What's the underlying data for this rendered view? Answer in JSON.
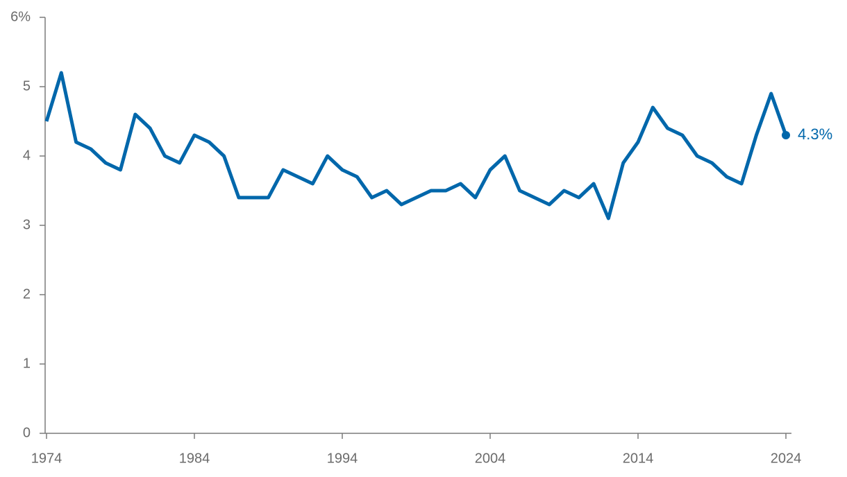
{
  "chart_data": {
    "type": "line",
    "x": [
      1974,
      1975,
      1976,
      1977,
      1978,
      1979,
      1980,
      1981,
      1982,
      1983,
      1984,
      1985,
      1986,
      1987,
      1988,
      1989,
      1990,
      1991,
      1992,
      1993,
      1994,
      1995,
      1996,
      1997,
      1998,
      1999,
      2000,
      2001,
      2002,
      2003,
      2004,
      2005,
      2006,
      2007,
      2008,
      2009,
      2010,
      2011,
      2012,
      2013,
      2014,
      2015,
      2016,
      2017,
      2018,
      2019,
      2020,
      2021,
      2022,
      2023,
      2024
    ],
    "series": [
      {
        "color": "#0067ab",
        "values": [
          4.5,
          5.2,
          4.2,
          4.1,
          3.9,
          3.8,
          4.6,
          4.4,
          4.0,
          3.9,
          4.3,
          4.2,
          4.0,
          3.4,
          3.4,
          3.4,
          3.8,
          3.7,
          3.6,
          4.0,
          3.8,
          3.7,
          3.4,
          3.5,
          3.3,
          3.4,
          3.5,
          3.5,
          3.6,
          3.4,
          3.8,
          4.0,
          3.5,
          3.4,
          3.3,
          3.5,
          3.4,
          3.6,
          3.1,
          3.9,
          4.2,
          4.7,
          4.4,
          4.3,
          4.0,
          3.9,
          3.7,
          3.6,
          4.3,
          4.9,
          4.3
        ]
      }
    ],
    "annotations": [
      {
        "text": "4.3%",
        "x": 2024,
        "y": 4.3
      }
    ],
    "xlim": [
      1974,
      2024
    ],
    "xticks": [
      1974,
      1984,
      1994,
      2004,
      2014,
      2024
    ],
    "ylim": [
      0,
      6
    ],
    "yticks": [
      0,
      1,
      2,
      3,
      4,
      5,
      {
        "value": 6,
        "label": "6%"
      }
    ],
    "grid": false
  }
}
